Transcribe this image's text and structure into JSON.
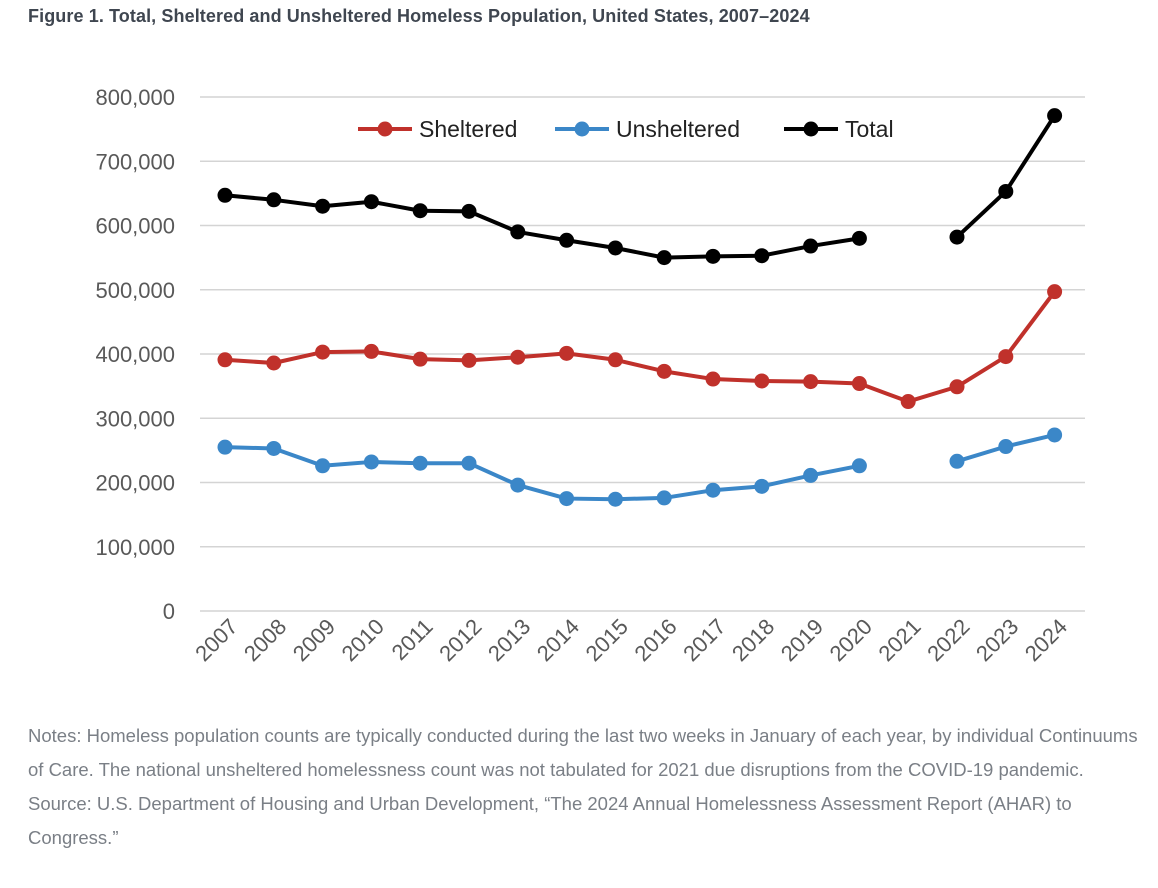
{
  "figure_title": "Figure 1. Total, Sheltered and Unsheltered Homeless Population, United States, 2007–2024",
  "notes": "Notes: Homeless population counts are typically conducted during the last two weeks in January of each year, by individual Continuums of Care. The national unsheltered homelessness count was not tabulated for 2021 due disruptions from the COVID-19 pandemic.",
  "source": "Source: U.S. Department of Housing and Urban Development, “The 2024 Annual Homelessness Assessment Report (AHAR) to Congress.”",
  "chart_data": {
    "type": "line",
    "title": "Figure 1. Total, Sheltered and Unsheltered Homeless Population, United States, 2007–2024",
    "xlabel": "",
    "ylabel": "",
    "ylim": [
      0,
      800000
    ],
    "yticks": [
      0,
      100000,
      200000,
      300000,
      400000,
      500000,
      600000,
      700000,
      800000
    ],
    "ytick_labels": [
      "0",
      "100,000",
      "200,000",
      "300,000",
      "400,000",
      "500,000",
      "600,000",
      "700,000",
      "800,000"
    ],
    "grid": "horizontal",
    "legend_position": "top",
    "categories": [
      "2007",
      "2008",
      "2009",
      "2010",
      "2011",
      "2012",
      "2013",
      "2014",
      "2015",
      "2016",
      "2017",
      "2018",
      "2019",
      "2020",
      "2021",
      "2022",
      "2023",
      "2024"
    ],
    "series": [
      {
        "name": "Sheltered",
        "color": "#c0312b",
        "values": [
          391000,
          386000,
          403000,
          404000,
          392000,
          390000,
          395000,
          401000,
          391000,
          373000,
          361000,
          358000,
          357000,
          354000,
          326000,
          349000,
          396000,
          497000
        ]
      },
      {
        "name": "Unsheltered",
        "color": "#3b87c8",
        "values": [
          255000,
          253000,
          226000,
          232000,
          230000,
          230000,
          196000,
          175000,
          174000,
          176000,
          188000,
          194000,
          211000,
          226000,
          null,
          233000,
          256000,
          274000
        ]
      },
      {
        "name": "Total",
        "color": "#000000",
        "values": [
          647000,
          640000,
          630000,
          637000,
          623000,
          622000,
          590000,
          577000,
          565000,
          550000,
          552000,
          553000,
          568000,
          580000,
          null,
          582000,
          653000,
          771000
        ]
      }
    ]
  }
}
